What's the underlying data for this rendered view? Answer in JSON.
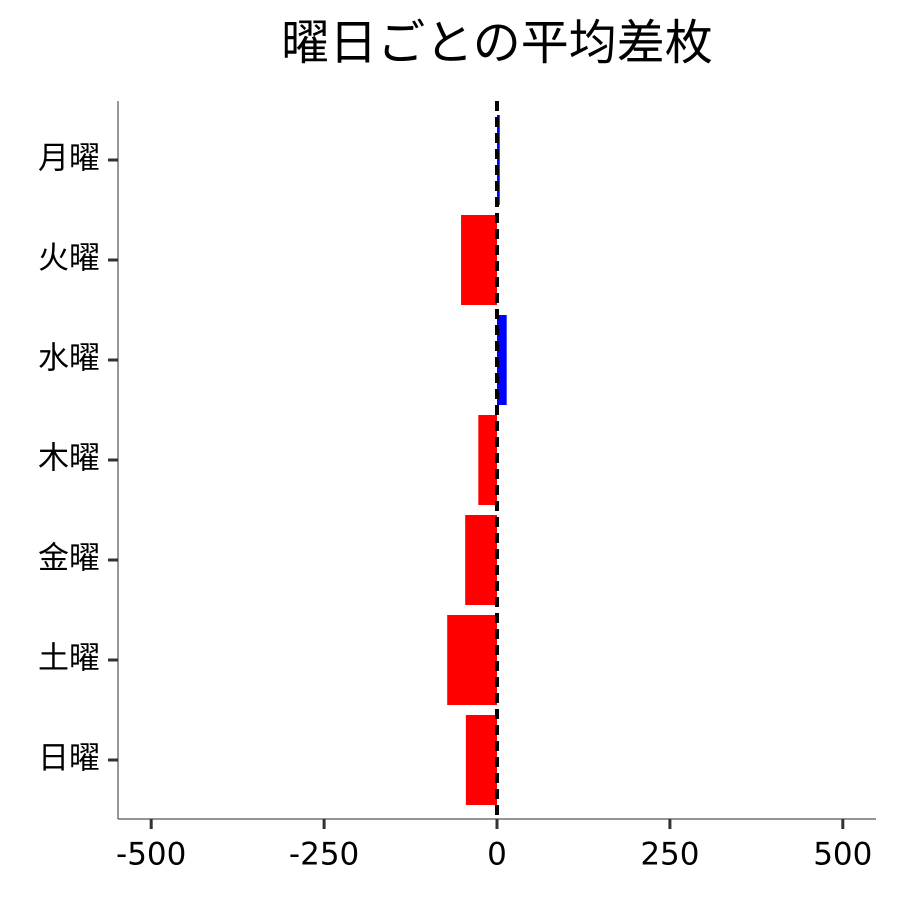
{
  "chart_data": {
    "type": "barh",
    "title": "曜日ごとの平均差枚",
    "categories": [
      "月曜",
      "火曜",
      "水曜",
      "木曜",
      "金曜",
      "土曜",
      "日曜"
    ],
    "values": [
      4,
      -52,
      14,
      -27,
      -46,
      -72,
      -45
    ],
    "colors": [
      "#0000ff",
      "#ff0000",
      "#0000ff",
      "#ff0000",
      "#ff0000",
      "#ff0000",
      "#ff0000"
    ],
    "xlim": [
      -548,
      548
    ],
    "xticks": [
      -500,
      -250,
      0,
      250,
      500
    ],
    "reference_line": 0
  }
}
